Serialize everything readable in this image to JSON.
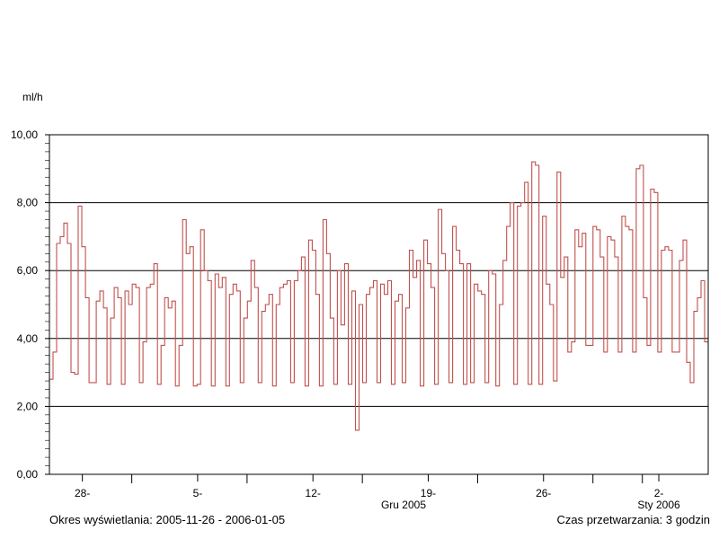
{
  "chart_data": {
    "type": "line",
    "ylabel": "ml/h",
    "xlabel": "",
    "ylim": [
      0,
      10
    ],
    "y_ticks": [
      "0,00",
      "2,00",
      "4,00",
      "6,00",
      "8,00",
      "10,00"
    ],
    "grid_y": [
      2,
      4,
      6,
      8
    ],
    "x_tick_labels": [
      "28-",
      "5-",
      "12-",
      "19-",
      "26-",
      "2-"
    ],
    "x_tick_days": [
      2,
      9,
      16,
      23,
      30,
      37
    ],
    "month_labels": [
      {
        "text": "Gru 2005",
        "day": 21.5
      },
      {
        "text": "Sty 2006",
        "day": 37
      }
    ],
    "xlim_days": [
      0,
      40
    ],
    "x_origin": "2005-11-26",
    "series": [
      {
        "color": "#c0504d",
        "step_values": [
          2.8,
          3.6,
          6.8,
          7.0,
          7.4,
          6.8,
          3.0,
          2.95,
          7.9,
          6.7,
          5.2,
          2.7,
          2.7,
          5.1,
          5.4,
          4.9,
          2.65,
          4.6,
          5.5,
          5.2,
          2.65,
          5.4,
          5.0,
          5.6,
          5.5,
          2.7,
          3.9,
          5.5,
          5.6,
          6.2,
          2.65,
          3.8,
          5.2,
          4.9,
          5.1,
          2.6,
          3.8,
          7.5,
          6.5,
          6.7,
          2.6,
          2.65,
          7.2,
          6.0,
          5.7,
          2.6,
          5.9,
          5.5,
          5.8,
          2.6,
          5.3,
          5.6,
          5.4,
          2.7,
          4.6,
          5.1,
          6.3,
          5.5,
          2.7,
          4.8,
          5.0,
          5.3,
          2.6,
          5.0,
          5.5,
          5.6,
          5.7,
          2.7,
          5.7,
          6.0,
          6.4,
          2.6,
          6.9,
          6.6,
          5.3,
          2.6,
          7.5,
          6.5,
          4.6,
          2.65,
          6.0,
          4.4,
          6.2,
          2.65,
          5.4,
          1.3,
          5.0,
          2.7,
          5.3,
          5.5,
          5.7,
          2.7,
          5.6,
          5.3,
          5.7,
          2.65,
          5.1,
          5.3,
          2.7,
          4.9,
          6.6,
          5.8,
          6.3,
          2.6,
          6.9,
          6.2,
          5.5,
          2.65,
          7.8,
          6.5,
          6.0,
          2.7,
          7.3,
          6.6,
          6.2,
          2.65,
          6.2,
          2.7,
          5.6,
          5.4,
          5.3,
          2.7,
          6.0,
          5.9,
          2.6,
          5.0,
          6.3,
          7.3,
          8.0,
          2.65,
          7.9,
          8.0,
          8.6,
          2.65,
          9.2,
          9.1,
          2.65,
          7.6,
          5.6,
          5.0,
          2.75,
          8.9,
          5.8,
          6.4,
          3.6,
          3.9,
          7.2,
          6.7,
          7.1,
          3.8,
          3.8,
          7.3,
          7.2,
          6.4,
          3.6,
          7.0,
          6.9,
          6.4,
          3.6,
          7.6,
          7.3,
          7.2,
          3.6,
          9.0,
          9.1,
          5.2,
          3.8,
          8.4,
          8.3,
          3.6,
          6.6,
          6.7,
          6.6,
          3.6,
          3.6,
          6.3,
          6.9,
          3.3,
          2.7,
          4.8,
          5.2,
          5.7,
          3.9
        ]
      }
    ]
  },
  "footer": {
    "left": "Okres wyświetlania: 2005-11-26 - 2006-01-05",
    "right": "Czas przetwarzania: 3 godzin"
  }
}
